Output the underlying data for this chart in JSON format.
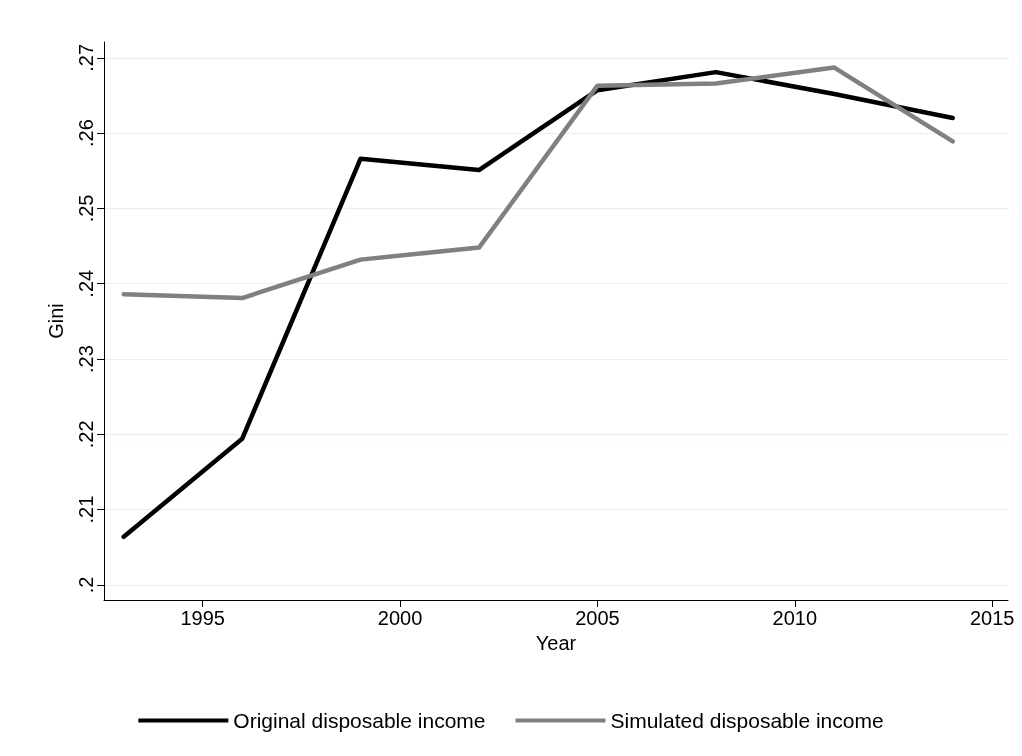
{
  "chart_data": {
    "type": "line",
    "xlabel": "Year",
    "ylabel": "Gini",
    "x": [
      1993,
      1996,
      1999,
      2002,
      2005,
      2008,
      2011,
      2014
    ],
    "series": [
      {
        "name": "Original disposable income",
        "color": "#000000",
        "values": [
          0.2064,
          0.2194,
          0.2566,
          0.2551,
          0.2657,
          0.2681,
          0.2652,
          0.262
        ]
      },
      {
        "name": "Simulated disposable income",
        "color": "#808080",
        "values": [
          0.2386,
          0.2381,
          0.2432,
          0.2448,
          0.2663,
          0.2666,
          0.2687,
          0.2589
        ]
      }
    ],
    "xlim": [
      1992.5,
      2015.4
    ],
    "xticks": [
      1995,
      2000,
      2005,
      2010,
      2015
    ],
    "ylim": [
      0.198,
      0.2721
    ],
    "yticks": [
      {
        "value": 0.2,
        "label": ".2"
      },
      {
        "value": 0.21,
        "label": ".21"
      },
      {
        "value": 0.22,
        "label": ".22"
      },
      {
        "value": 0.23,
        "label": ".23"
      },
      {
        "value": 0.24,
        "label": ".24"
      },
      {
        "value": 0.25,
        "label": ".25"
      },
      {
        "value": 0.26,
        "label": ".26"
      },
      {
        "value": 0.27,
        "label": ".27"
      }
    ],
    "grid": "y",
    "legend": "bottom",
    "marker": "none",
    "line_style": "solid"
  }
}
